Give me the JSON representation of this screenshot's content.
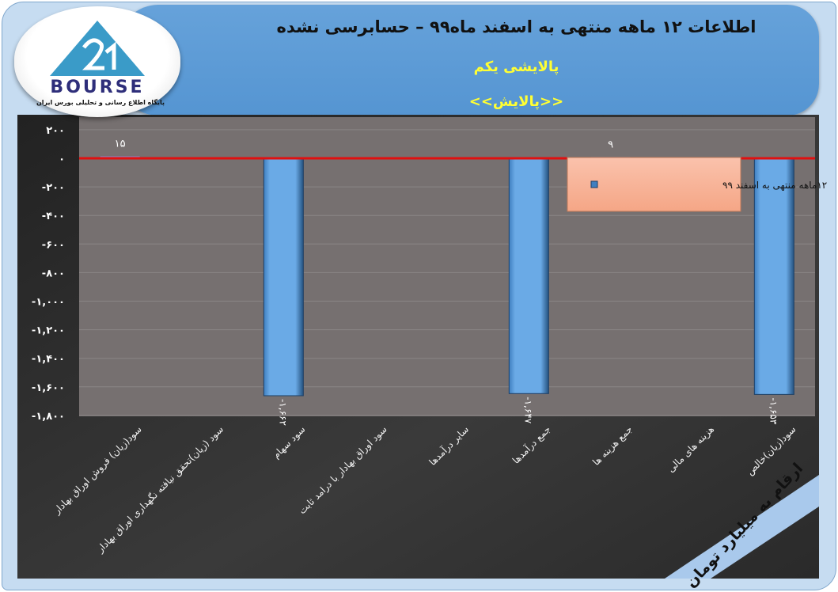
{
  "header": {
    "title": "اطلاعات ۱۲ ماهه منتهی به اسفند ماه۹۹ – حسابرسی نشده",
    "company": "پالایشی یکم",
    "symbol": "<<پالایش>>"
  },
  "logo": {
    "word": "BOURSE",
    "subtitle": "پایگاه اطلاع رسانی و تحلیلی بورس ایران"
  },
  "unit_note": "ارقام به میلیارد تومان",
  "colors": {
    "bar": "#5b9bd5",
    "zero_line": "#e01010",
    "plot_bg": "#767070",
    "legend_bg": "#f8b9a0",
    "title_yellow": "#ffff33"
  },
  "chart_data": {
    "type": "bar",
    "categories": [
      "سود(زیان) فروش اوراق بهادار",
      "سود (زیان)تحقق نیافته نگهداری اوراق بهادار",
      "سود سهام",
      "سود اوراق بهادار با درامد ثابت",
      "سایر درآمدها",
      "جمع درآمدها",
      "جمع هزینه ها",
      "هزینه های مالی",
      "سود(زیان)خالص"
    ],
    "series": [
      {
        "name": "۱۲ماهه منتهی به اسفند ۹۹",
        "values": [
          15,
          null,
          -1662,
          null,
          null,
          -1647,
          9,
          null,
          -1653
        ],
        "labels": [
          "۱۵",
          "",
          "-۱,۶۶۲",
          "",
          "",
          "-۱,۶۴۷",
          "۹",
          "",
          "-۱,۶۵۳"
        ]
      }
    ],
    "yticks": [
      200,
      0,
      -200,
      -400,
      -600,
      -800,
      -1000,
      -1200,
      -1400,
      -1600,
      -1800
    ],
    "ytick_labels": [
      "۲۰۰",
      "۰",
      "-۲۰۰",
      "-۴۰۰",
      "-۶۰۰",
      "-۸۰۰",
      "-۱,۰۰۰",
      "-۱,۲۰۰",
      "-۱,۴۰۰",
      "-۱,۶۰۰",
      "-۱,۸۰۰"
    ],
    "ylim": [
      -1800,
      200
    ],
    "grid": true,
    "legend": "top-right"
  }
}
